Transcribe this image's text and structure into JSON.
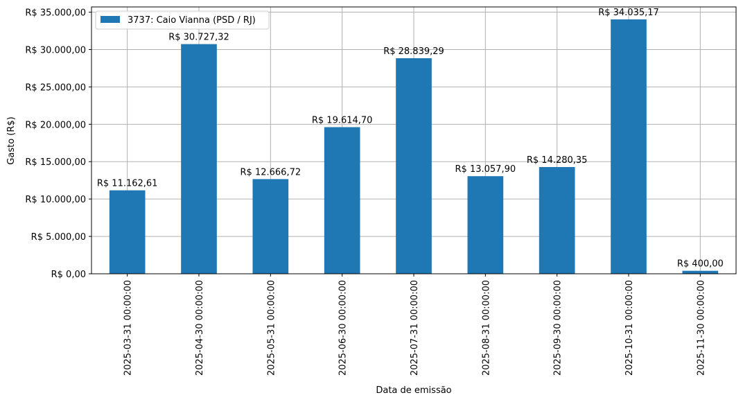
{
  "chart_data": {
    "type": "bar",
    "title": "",
    "xlabel": "Data de emissão",
    "ylabel": "Gasto (R$)",
    "ylim": [
      0,
      35700
    ],
    "yticks": [
      0,
      5000,
      10000,
      15000,
      20000,
      25000,
      30000,
      35000
    ],
    "ytick_labels": [
      "R$ 0,00",
      "R$ 5.000,00",
      "R$ 10.000,00",
      "R$ 15.000,00",
      "R$ 20.000,00",
      "R$ 25.000,00",
      "R$ 30.000,00",
      "R$ 35.000,00"
    ],
    "grid": true,
    "legend_position": "top-left",
    "categories": [
      "2025-03-31 00:00:00",
      "2025-04-30 00:00:00",
      "2025-05-31 00:00:00",
      "2025-06-30 00:00:00",
      "2025-07-31 00:00:00",
      "2025-08-31 00:00:00",
      "2025-09-30 00:00:00",
      "2025-10-31 00:00:00",
      "2025-11-30 00:00:00"
    ],
    "series": [
      {
        "name": "3737: Caio Vianna (PSD / RJ)",
        "color": "#1f77b4",
        "values": [
          11162.61,
          30727.32,
          12666.72,
          19614.7,
          28839.29,
          13057.9,
          14280.35,
          34035.17,
          400.0
        ],
        "labels": [
          "R$ 11.162,61",
          "R$ 30.727,32",
          "R$ 12.666,72",
          "R$ 19.614,70",
          "R$ 28.839,29",
          "R$ 13.057,90",
          "R$ 14.280,35",
          "R$ 34.035,17",
          "R$ 400,00"
        ]
      }
    ]
  }
}
